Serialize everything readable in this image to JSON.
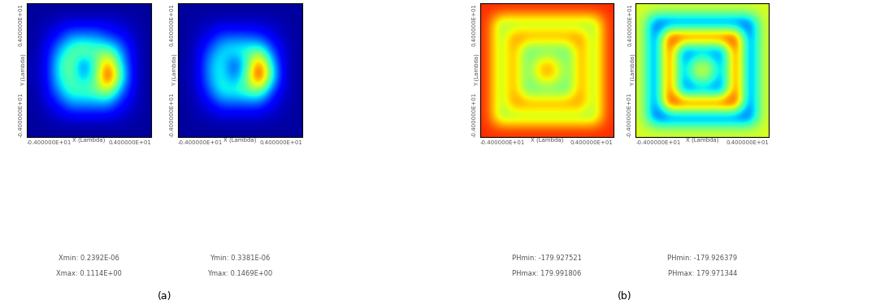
{
  "chart_data": [
    {
      "type": "heatmap",
      "xlabel": "X (Lambda)",
      "ylabel": "Y (Lambda)",
      "xlim": [
        -4,
        4
      ],
      "ylim": [
        -4,
        4
      ],
      "xticks": [
        {
          "value": -4,
          "label": "-0.400000E+01"
        },
        {
          "value": 4,
          "label": "0.400000E+01"
        }
      ],
      "yticks": [
        {
          "value": -4,
          "label": "-0.400000E+01"
        },
        {
          "value": 4,
          "label": "0.400000E+01"
        }
      ],
      "vmin": 2.392e-07,
      "vmax": 0.1114,
      "stats": [
        "Xmin: 0.2392E-06",
        "Xmax: 0.1114E+00"
      ],
      "cells": [
        [
          0.003,
          0.003,
          0.003,
          0.003,
          0.003,
          0.003,
          0.003,
          0.003,
          0.003,
          0.003
        ],
        [
          0.003,
          0.005,
          0.008,
          0.01,
          0.01,
          0.01,
          0.01,
          0.008,
          0.005,
          0.003
        ],
        [
          0.003,
          0.008,
          0.015,
          0.03,
          0.03,
          0.03,
          0.02,
          0.015,
          0.008,
          0.003
        ],
        [
          0.003,
          0.01,
          0.03,
          0.05,
          0.06,
          0.05,
          0.055,
          0.03,
          0.01,
          0.003
        ],
        [
          0.005,
          0.01,
          0.04,
          0.06,
          0.02,
          0.05,
          0.09,
          0.04,
          0.01,
          0.003
        ],
        [
          0.005,
          0.01,
          0.04,
          0.055,
          0.03,
          0.05,
          0.11,
          0.05,
          0.01,
          0.003
        ],
        [
          0.003,
          0.01,
          0.03,
          0.05,
          0.05,
          0.055,
          0.07,
          0.03,
          0.01,
          0.003
        ],
        [
          0.003,
          0.008,
          0.015,
          0.03,
          0.03,
          0.03,
          0.03,
          0.015,
          0.008,
          0.003
        ],
        [
          0.003,
          0.005,
          0.008,
          0.01,
          0.01,
          0.01,
          0.01,
          0.008,
          0.005,
          0.003
        ],
        [
          0.003,
          0.003,
          0.003,
          0.003,
          0.003,
          0.003,
          0.003,
          0.003,
          0.003,
          0.003
        ]
      ]
    },
    {
      "type": "heatmap",
      "xlabel": "X (Lambda)",
      "ylabel": "Y (Lambda)",
      "xlim": [
        -4,
        4
      ],
      "ylim": [
        -4,
        4
      ],
      "xticks": [
        {
          "value": -4,
          "label": "-0.400000E+01"
        },
        {
          "value": 4,
          "label": "0.400000E+01"
        }
      ],
      "yticks": [
        {
          "value": -4,
          "label": "-0.400000E+01"
        },
        {
          "value": 4,
          "label": "0.400000E+01"
        }
      ],
      "vmin": 3.381e-07,
      "vmax": 0.1469,
      "stats": [
        "Ymin: 0.3381E-06",
        "Ymax: 0.1469E+00"
      ],
      "cells": [
        [
          0.004,
          0.004,
          0.004,
          0.004,
          0.004,
          0.004,
          0.004,
          0.004,
          0.004,
          0.004
        ],
        [
          0.004,
          0.006,
          0.008,
          0.01,
          0.01,
          0.01,
          0.01,
          0.008,
          0.006,
          0.004
        ],
        [
          0.004,
          0.008,
          0.015,
          0.03,
          0.03,
          0.03,
          0.025,
          0.015,
          0.008,
          0.004
        ],
        [
          0.004,
          0.01,
          0.03,
          0.05,
          0.06,
          0.06,
          0.07,
          0.03,
          0.01,
          0.004
        ],
        [
          0.005,
          0.01,
          0.04,
          0.06,
          0.02,
          0.06,
          0.13,
          0.05,
          0.01,
          0.004
        ],
        [
          0.005,
          0.01,
          0.04,
          0.06,
          0.03,
          0.07,
          0.145,
          0.06,
          0.01,
          0.004
        ],
        [
          0.004,
          0.01,
          0.03,
          0.06,
          0.06,
          0.07,
          0.08,
          0.03,
          0.01,
          0.004
        ],
        [
          0.004,
          0.008,
          0.015,
          0.03,
          0.03,
          0.03,
          0.03,
          0.015,
          0.008,
          0.004
        ],
        [
          0.004,
          0.006,
          0.008,
          0.01,
          0.01,
          0.01,
          0.01,
          0.008,
          0.006,
          0.004
        ],
        [
          0.004,
          0.004,
          0.004,
          0.004,
          0.004,
          0.004,
          0.004,
          0.004,
          0.004,
          0.004
        ]
      ]
    },
    {
      "type": "heatmap",
      "xlabel": "X (Lambda)",
      "ylabel": "Y (Lambda)",
      "xlim": [
        -4,
        4
      ],
      "ylim": [
        -4,
        4
      ],
      "xticks": [
        {
          "value": -4,
          "label": "-0.400000E+01"
        },
        {
          "value": 4,
          "label": "0.400000E+01"
        }
      ],
      "yticks": [
        {
          "value": -4,
          "label": "-0.400000E+01"
        },
        {
          "value": 4,
          "label": "0.400000E+01"
        }
      ],
      "vmin": -179.927521,
      "vmax": 179.991806,
      "stats": [
        "PHmin: -179.927521",
        "PHmax: 179.991806"
      ],
      "cells": [
        [
          130,
          130,
          130,
          130,
          130,
          130,
          130,
          130,
          130,
          130
        ],
        [
          130,
          10,
          10,
          10,
          10,
          10,
          10,
          10,
          10,
          130
        ],
        [
          130,
          10,
          100,
          100,
          100,
          100,
          100,
          100,
          10,
          130
        ],
        [
          130,
          10,
          100,
          -20,
          -20,
          -20,
          -20,
          100,
          10,
          130
        ],
        [
          130,
          10,
          100,
          -20,
          80,
          80,
          -20,
          100,
          10,
          130
        ],
        [
          130,
          10,
          100,
          -20,
          80,
          80,
          -20,
          100,
          10,
          130
        ],
        [
          130,
          10,
          100,
          -20,
          -20,
          -20,
          -20,
          100,
          10,
          130
        ],
        [
          130,
          10,
          100,
          100,
          100,
          100,
          100,
          100,
          10,
          130
        ],
        [
          130,
          10,
          10,
          10,
          10,
          10,
          10,
          10,
          10,
          130
        ],
        [
          130,
          130,
          130,
          130,
          130,
          130,
          130,
          130,
          130,
          130
        ]
      ]
    },
    {
      "type": "heatmap",
      "xlabel": "X (Lambda)",
      "ylabel": "Y (Lambda)",
      "xlim": [
        -4,
        4
      ],
      "ylim": [
        -4,
        4
      ],
      "xticks": [
        {
          "value": -4,
          "label": "-0.400000E+01"
        },
        {
          "value": 4,
          "label": "0.400000E+01"
        }
      ],
      "yticks": [
        {
          "value": -4,
          "label": "-0.400000E+01"
        },
        {
          "value": 4,
          "label": "0.400000E+01"
        }
      ],
      "vmin": -179.926379,
      "vmax": 179.971344,
      "stats": [
        "PHmin: -179.926379",
        "PHmax: 179.971344"
      ],
      "cells": [
        [
          40,
          40,
          40,
          40,
          40,
          40,
          40,
          40,
          40,
          40
        ],
        [
          40,
          -130,
          -130,
          -130,
          -130,
          -130,
          -130,
          -130,
          -130,
          40
        ],
        [
          40,
          -130,
          160,
          160,
          160,
          160,
          160,
          160,
          -130,
          40
        ],
        [
          40,
          -130,
          160,
          -110,
          -110,
          -110,
          -110,
          160,
          -130,
          40
        ],
        [
          40,
          -130,
          160,
          -110,
          30,
          30,
          -110,
          160,
          -130,
          40
        ],
        [
          40,
          -130,
          160,
          -110,
          30,
          30,
          -110,
          160,
          -130,
          40
        ],
        [
          40,
          -130,
          160,
          -110,
          -110,
          -110,
          -110,
          160,
          -130,
          40
        ],
        [
          40,
          -130,
          160,
          160,
          160,
          160,
          160,
          160,
          -130,
          40
        ],
        [
          40,
          -130,
          -130,
          -130,
          -130,
          -130,
          -130,
          -130,
          -130,
          40
        ],
        [
          40,
          40,
          40,
          40,
          40,
          40,
          40,
          40,
          40,
          40
        ]
      ]
    }
  ],
  "captions": [
    "(a)",
    "(b)"
  ]
}
